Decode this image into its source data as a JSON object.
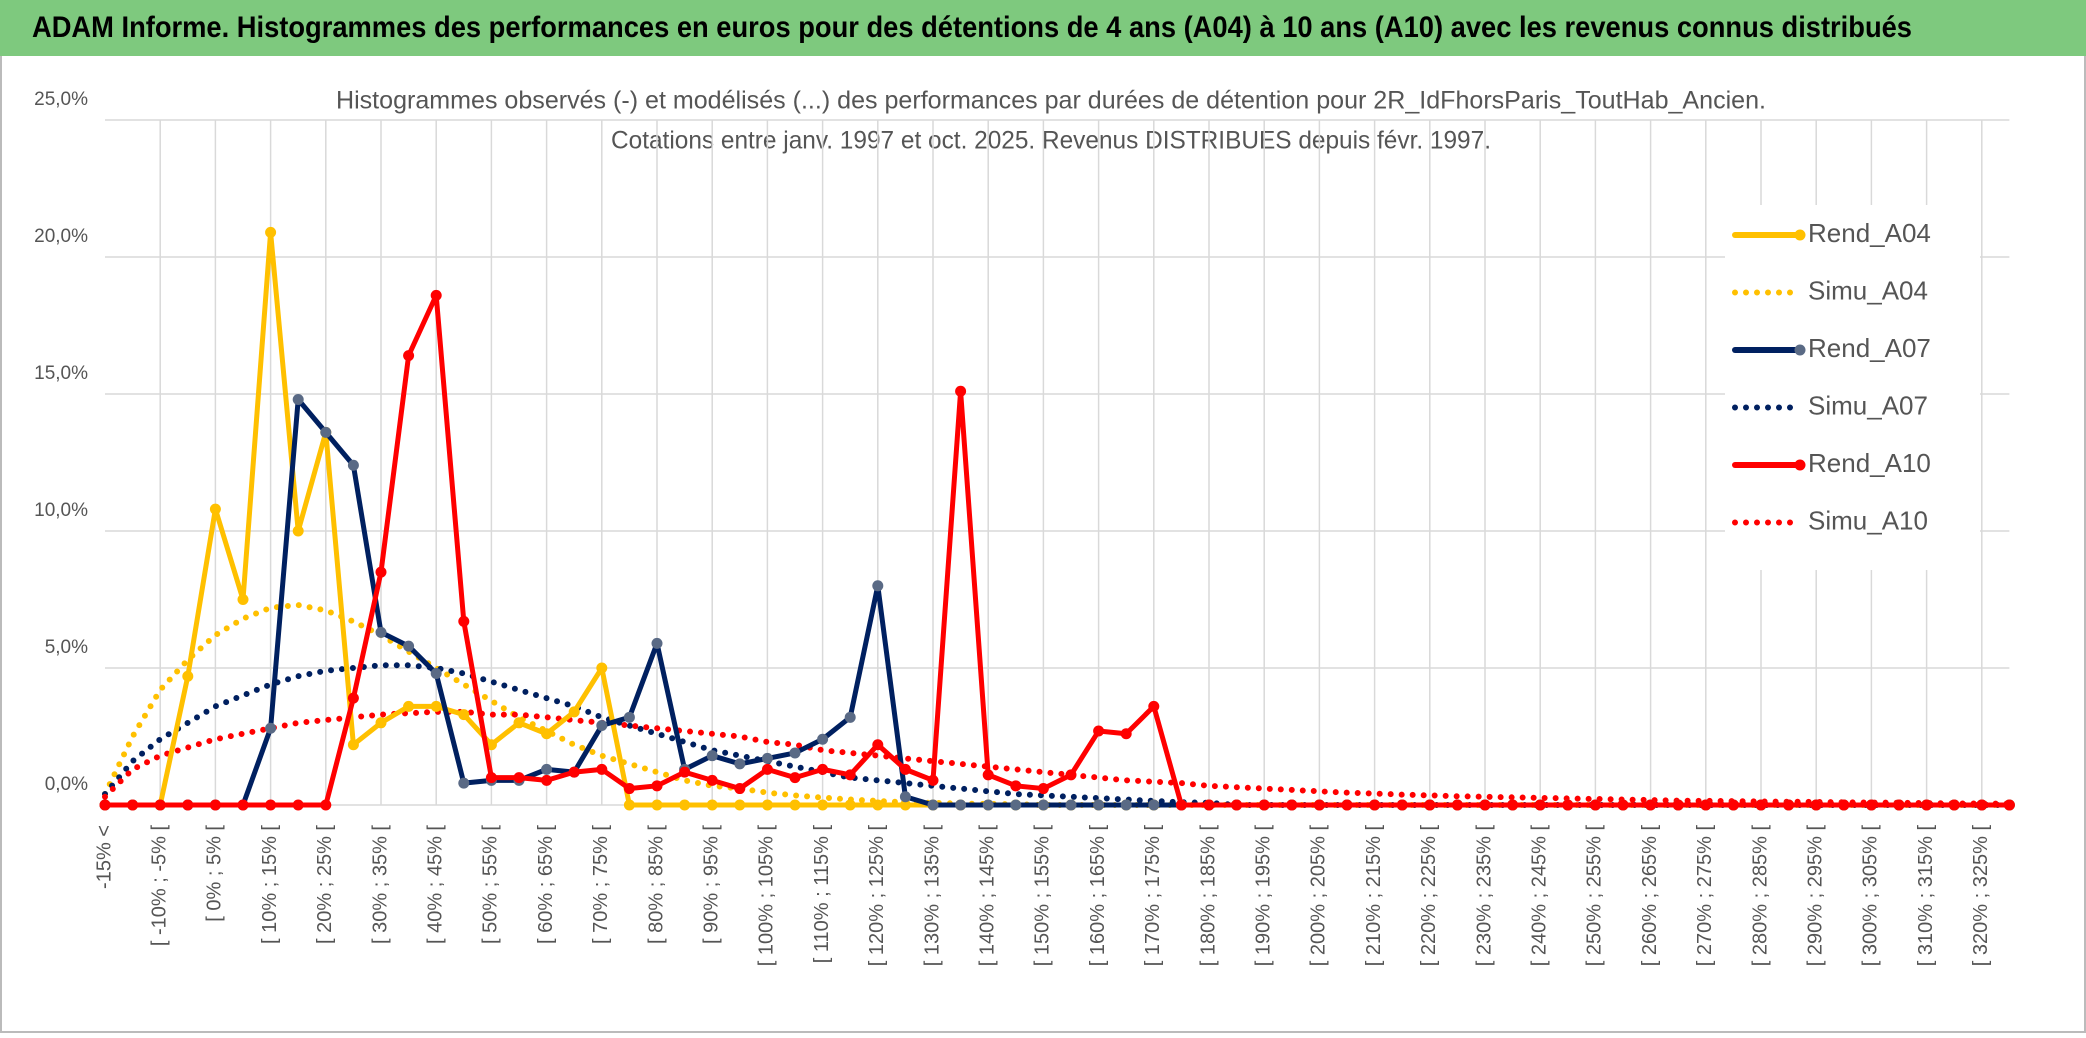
{
  "header": {
    "title": "ADAM Informe. Histogrammes des performances en euros pour des détentions de 4 ans (A04) à 10 ans (A10) avec les revenus connus distribués"
  },
  "chart_data": {
    "type": "line",
    "title": "Histogrammes observés (-) et modélisés (...) des performances par durées de détention pour 2R_IdFhorsParis_ToutHab_Ancien.",
    "subtitle": "Cotations entre janv. 1997 et oct. 2025. Revenus DISTRIBUES depuis févr. 1997.",
    "categories": [
      "-15% <",
      null,
      "[ -10% ; -5% [",
      null,
      "[ 0% ; 5% [",
      null,
      "[ 10% ; 15% [",
      null,
      "[ 20% ; 25% [",
      null,
      "[ 30% ; 35% [",
      null,
      "[ 40% ; 45% [",
      null,
      "[ 50% ; 55% [",
      null,
      "[ 60% ; 65% [",
      null,
      "[ 70% ; 75% [",
      null,
      "[ 80% ; 85% [",
      null,
      "[ 90% ; 95% [",
      null,
      "[ 100% ; 105% [",
      null,
      "[ 110% ; 115% [",
      null,
      "[ 120% ; 125% [",
      null,
      "[ 130% ; 135% [",
      null,
      "[ 140% ; 145% [",
      null,
      "[ 150% ; 155% [",
      null,
      "[ 160% ; 165% [",
      null,
      "[ 170% ; 175% [",
      null,
      "[ 180% ; 185% [",
      null,
      "[ 190% ; 195% [",
      null,
      "[ 200% ; 205% [",
      null,
      "[ 210% ; 215% [",
      null,
      "[ 220% ; 225% [",
      null,
      "[ 230% ; 235% [",
      null,
      "[ 240% ; 245% [",
      null,
      "[ 250% ; 255% [",
      null,
      "[ 260% ; 265% [",
      null,
      "[ 270% ; 275% [",
      null,
      "[ 280% ; 285% [",
      null,
      "[ 290% ; 295% [",
      null,
      "[ 300% ; 305% [",
      null,
      "[ 310% ; 315% [",
      null,
      "[ 320% ; 325% [",
      null
    ],
    "series": [
      {
        "name": "Rend_A04",
        "color": "#ffc000",
        "marker_color": "#ffc000",
        "style": "solid",
        "values": [
          0,
          0,
          0,
          4.7,
          10.8,
          7.5,
          20.9,
          10.0,
          13.6,
          2.2,
          3.0,
          3.6,
          3.6,
          3.3,
          2.2,
          3.0,
          2.6,
          3.4,
          5.0,
          0,
          0,
          0,
          0,
          0,
          0,
          0,
          0,
          0,
          0,
          0,
          0,
          0,
          0,
          0,
          0,
          0,
          0,
          0,
          0,
          0,
          0,
          0,
          0,
          0,
          0,
          0,
          0,
          0,
          0,
          0,
          0,
          0,
          0,
          0,
          0,
          0,
          0,
          0,
          0,
          0,
          0,
          0,
          0,
          0,
          0,
          0,
          0,
          0,
          0,
          0
        ]
      },
      {
        "name": "Simu_A04",
        "color": "#ffc000",
        "style": "dotted",
        "values": [
          0.4,
          2.5,
          4.2,
          5.3,
          6.2,
          6.8,
          7.2,
          7.3,
          7.1,
          6.7,
          6.2,
          5.6,
          5.0,
          4.4,
          3.8,
          3.2,
          2.7,
          2.2,
          1.8,
          1.5,
          1.2,
          0.9,
          0.7,
          0.6,
          0.45,
          0.35,
          0.27,
          0.2,
          0.15,
          0.1,
          0.08,
          0.05,
          0.04,
          0.03,
          0,
          0,
          0,
          0,
          0,
          0,
          0,
          0,
          0,
          0,
          0,
          0,
          0,
          0,
          0,
          0,
          0,
          0,
          0,
          0,
          0,
          0,
          0,
          0,
          0,
          0,
          0,
          0,
          0,
          0,
          0,
          0,
          0,
          0,
          0,
          0
        ]
      },
      {
        "name": "Rend_A07",
        "color": "#002060",
        "marker_color": "#5a6a85",
        "style": "solid",
        "values": [
          0,
          0,
          0,
          0,
          0,
          0,
          2.8,
          14.8,
          13.6,
          12.4,
          6.3,
          5.8,
          4.8,
          0.8,
          0.9,
          0.9,
          1.3,
          1.2,
          2.9,
          3.2,
          5.9,
          1.3,
          1.8,
          1.5,
          1.7,
          1.9,
          2.4,
          3.2,
          8.0,
          0.3,
          0,
          0,
          0,
          0,
          0,
          0,
          0,
          0,
          0,
          0,
          0,
          0,
          0,
          0,
          0,
          0,
          0,
          0,
          0,
          0,
          0,
          0,
          0,
          0,
          0,
          0,
          0,
          0,
          0,
          0,
          0,
          0,
          0,
          0,
          0,
          0,
          0,
          0,
          0,
          0
        ]
      },
      {
        "name": "Simu_A07",
        "color": "#002060",
        "style": "dotted",
        "values": [
          0.4,
          1.6,
          2.4,
          3.0,
          3.6,
          4.0,
          4.4,
          4.7,
          4.9,
          5.0,
          5.1,
          5.1,
          5.0,
          4.8,
          4.5,
          4.2,
          3.9,
          3.6,
          3.2,
          2.9,
          2.6,
          2.3,
          2.0,
          1.8,
          1.6,
          1.4,
          1.2,
          1.0,
          0.9,
          0.8,
          0.7,
          0.6,
          0.5,
          0.4,
          0.35,
          0.3,
          0.25,
          0.2,
          0.15,
          0.1,
          0.08,
          0,
          0,
          0,
          0,
          0,
          0,
          0,
          0,
          0,
          0,
          0,
          0,
          0,
          0,
          0,
          0,
          0,
          0,
          0,
          0,
          0,
          0,
          0,
          0,
          0,
          0,
          0,
          0,
          0
        ]
      },
      {
        "name": "Rend_A10",
        "color": "#ff0000",
        "marker_color": "#ff0000",
        "style": "solid",
        "values": [
          0,
          0,
          0,
          0,
          0,
          0,
          0,
          0,
          0,
          3.9,
          8.5,
          16.4,
          18.6,
          6.7,
          1.0,
          1.0,
          0.9,
          1.2,
          1.3,
          0.6,
          0.7,
          1.2,
          0.9,
          0.6,
          1.3,
          1.0,
          1.3,
          1.1,
          2.2,
          1.3,
          0.9,
          15.1,
          1.1,
          0.7,
          0.6,
          1.1,
          2.7,
          2.6,
          3.6,
          0,
          0,
          0,
          0,
          0,
          0,
          0,
          0,
          0,
          0,
          0,
          0,
          0,
          0,
          0,
          0,
          0,
          0,
          0,
          0,
          0,
          0,
          0,
          0,
          0,
          0,
          0,
          0,
          0,
          0,
          0
        ]
      },
      {
        "name": "Simu_A10",
        "color": "#ff0000",
        "style": "dotted",
        "values": [
          0.3,
          1.3,
          1.8,
          2.1,
          2.4,
          2.6,
          2.8,
          3.0,
          3.1,
          3.2,
          3.3,
          3.35,
          3.4,
          3.4,
          3.3,
          3.3,
          3.2,
          3.1,
          3.0,
          2.9,
          2.8,
          2.7,
          2.6,
          2.5,
          2.3,
          2.2,
          2.0,
          1.9,
          1.8,
          1.7,
          1.6,
          1.5,
          1.4,
          1.3,
          1.2,
          1.1,
          1.0,
          0.9,
          0.85,
          0.8,
          0.7,
          0.65,
          0.6,
          0.55,
          0.5,
          0.45,
          0.42,
          0.38,
          0.35,
          0.32,
          0.3,
          0.28,
          0.26,
          0.24,
          0.22,
          0.2,
          0.18,
          0.16,
          0.15,
          0.14,
          0.13,
          0.12,
          0.11,
          0.1,
          0.09,
          0.08,
          0.07,
          0.06,
          0.05,
          0.05
        ]
      }
    ],
    "ylim": [
      0,
      25
    ],
    "yticks": [
      {
        "value": 0,
        "label": "0,0%"
      },
      {
        "value": 5,
        "label": "5,0%"
      },
      {
        "value": 10,
        "label": "10,0%"
      },
      {
        "value": 15,
        "label": "15,0%"
      },
      {
        "value": 20,
        "label": "20,0%"
      },
      {
        "value": 25,
        "label": "25,0%"
      }
    ],
    "grid": true,
    "legend": "right"
  }
}
